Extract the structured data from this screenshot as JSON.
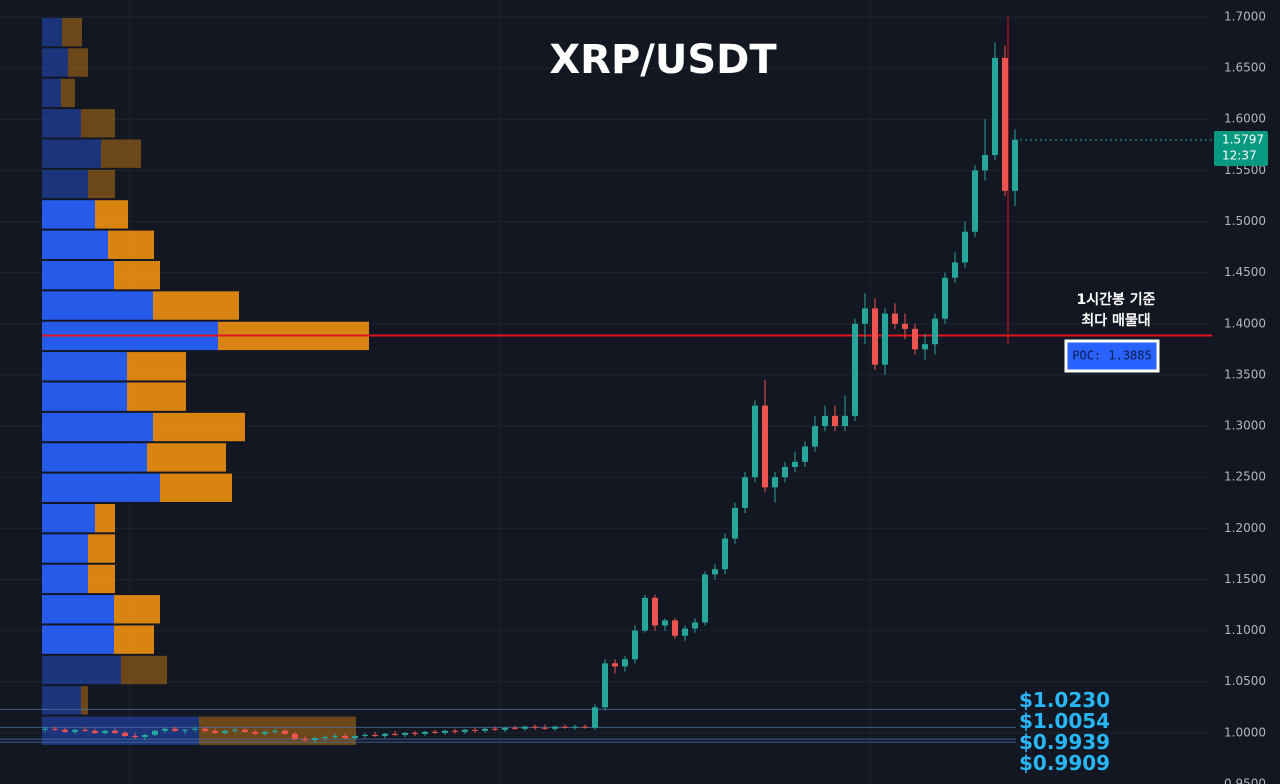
{
  "chart_data": {
    "type": "candlestick",
    "title": "XRP/USDT",
    "ylim": [
      0.95,
      1.7166
    ],
    "yticks": [
      {
        "value": 0.95,
        "label": "0.9500"
      },
      {
        "value": 1.0,
        "label": "1.0000"
      },
      {
        "value": 1.05,
        "label": "1.0500"
      },
      {
        "value": 1.1,
        "label": "1.1000"
      },
      {
        "value": 1.15,
        "label": "1.1500"
      },
      {
        "value": 1.2,
        "label": "1.2000"
      },
      {
        "value": 1.25,
        "label": "1.2500"
      },
      {
        "value": 1.3,
        "label": "1.3000"
      },
      {
        "value": 1.35,
        "label": "1.3500"
      },
      {
        "value": 1.4,
        "label": "1.4000"
      },
      {
        "value": 1.45,
        "label": "1.4500"
      },
      {
        "value": 1.5,
        "label": "1.5000"
      },
      {
        "value": 1.55,
        "label": "1.5500"
      },
      {
        "value": 1.6,
        "label": "1.6000"
      },
      {
        "value": 1.65,
        "label": "1.6500"
      },
      {
        "value": 1.7,
        "label": "1.7000"
      }
    ],
    "grid": true,
    "up_color": "#26a69a",
    "down_color": "#ef5350",
    "candles": [
      [
        1.003,
        1.006,
        1.001,
        1.004
      ],
      [
        1.004,
        1.006,
        1.002,
        1.003
      ],
      [
        1.003,
        1.005,
        1.0,
        1.001
      ],
      [
        1.001,
        1.004,
        0.999,
        1.003
      ],
      [
        1.003,
        1.006,
        1.001,
        1.002
      ],
      [
        1.002,
        1.004,
        0.999,
        1.0
      ],
      [
        1.0,
        1.003,
        0.998,
        1.002
      ],
      [
        1.002,
        1.004,
        0.999,
        1.0
      ],
      [
        1.0,
        1.002,
        0.996,
        0.997
      ],
      [
        0.997,
        1.0,
        0.994,
        0.996
      ],
      [
        0.996,
        0.999,
        0.993,
        0.998
      ],
      [
        0.998,
        1.003,
        0.997,
        1.002
      ],
      [
        1.002,
        1.005,
        1.0,
        1.004
      ],
      [
        1.004,
        1.006,
        1.001,
        1.002
      ],
      [
        1.002,
        1.004,
        0.999,
        1.003
      ],
      [
        1.003,
        1.006,
        1.001,
        1.004
      ],
      [
        1.004,
        1.006,
        1.001,
        1.002
      ],
      [
        1.002,
        1.004,
        0.999,
        1.0
      ],
      [
        1.0,
        1.003,
        0.998,
        1.002
      ],
      [
        1.002,
        1.005,
        1.0,
        1.003
      ],
      [
        1.003,
        1.005,
        1.0,
        1.001
      ],
      [
        1.001,
        1.003,
        0.998,
        0.999
      ],
      [
        0.999,
        1.002,
        0.997,
        1.001
      ],
      [
        1.001,
        1.004,
        0.999,
        1.002
      ],
      [
        1.002,
        1.004,
        0.998,
        0.999
      ],
      [
        0.999,
        1.001,
        0.993,
        0.994
      ],
      [
        0.994,
        0.997,
        0.991,
        0.993
      ],
      [
        0.993,
        0.996,
        0.99,
        0.995
      ],
      [
        0.995,
        0.998,
        0.993,
        0.996
      ],
      [
        0.996,
        0.999,
        0.994,
        0.997
      ],
      [
        0.997,
        0.999,
        0.994,
        0.995
      ],
      [
        0.995,
        0.998,
        0.993,
        0.997
      ],
      [
        0.997,
        1.0,
        0.995,
        0.998
      ],
      [
        0.998,
        1.001,
        0.996,
        0.997
      ],
      [
        0.997,
        1.0,
        0.995,
        0.999
      ],
      [
        0.999,
        1.002,
        0.997,
        0.998
      ],
      [
        0.998,
        1.001,
        0.996,
        1.0
      ],
      [
        1.0,
        1.002,
        0.997,
        0.999
      ],
      [
        0.999,
        1.002,
        0.997,
        1.001
      ],
      [
        1.001,
        1.003,
        0.999,
        1.0
      ],
      [
        1.0,
        1.003,
        0.998,
        1.002
      ],
      [
        1.002,
        1.004,
        0.999,
        1.001
      ],
      [
        1.001,
        1.004,
        0.999,
        1.003
      ],
      [
        1.003,
        1.005,
        1.0,
        1.002
      ],
      [
        1.002,
        1.005,
        1.0,
        1.004
      ],
      [
        1.004,
        1.006,
        1.002,
        1.003
      ],
      [
        1.003,
        1.006,
        1.001,
        1.005
      ],
      [
        1.005,
        1.007,
        1.003,
        1.004
      ],
      [
        1.004,
        1.007,
        1.002,
        1.006
      ],
      [
        1.006,
        1.008,
        1.003,
        1.005
      ],
      [
        1.005,
        1.008,
        1.003,
        1.004
      ],
      [
        1.004,
        1.007,
        1.002,
        1.006
      ],
      [
        1.006,
        1.008,
        1.004,
        1.005
      ],
      [
        1.005,
        1.008,
        1.003,
        1.006
      ],
      [
        1.006,
        1.008,
        1.004,
        1.005
      ],
      [
        1.005,
        1.028,
        1.003,
        1.025
      ],
      [
        1.025,
        1.072,
        1.022,
        1.068
      ],
      [
        1.068,
        1.072,
        1.058,
        1.065
      ],
      [
        1.065,
        1.075,
        1.06,
        1.072
      ],
      [
        1.072,
        1.105,
        1.068,
        1.1
      ],
      [
        1.1,
        1.135,
        1.098,
        1.132
      ],
      [
        1.132,
        1.135,
        1.1,
        1.105
      ],
      [
        1.105,
        1.112,
        1.1,
        1.11
      ],
      [
        1.11,
        1.112,
        1.092,
        1.095
      ],
      [
        1.095,
        1.105,
        1.09,
        1.102
      ],
      [
        1.102,
        1.112,
        1.098,
        1.108
      ],
      [
        1.108,
        1.158,
        1.105,
        1.155
      ],
      [
        1.155,
        1.165,
        1.15,
        1.16
      ],
      [
        1.16,
        1.195,
        1.155,
        1.19
      ],
      [
        1.19,
        1.225,
        1.185,
        1.22
      ],
      [
        1.22,
        1.255,
        1.215,
        1.25
      ],
      [
        1.25,
        1.325,
        1.245,
        1.32
      ],
      [
        1.32,
        1.345,
        1.235,
        1.24
      ],
      [
        1.24,
        1.255,
        1.225,
        1.25
      ],
      [
        1.25,
        1.265,
        1.245,
        1.26
      ],
      [
        1.26,
        1.275,
        1.255,
        1.265
      ],
      [
        1.265,
        1.285,
        1.26,
        1.28
      ],
      [
        1.28,
        1.31,
        1.275,
        1.3
      ],
      [
        1.3,
        1.32,
        1.295,
        1.31
      ],
      [
        1.31,
        1.32,
        1.295,
        1.3
      ],
      [
        1.3,
        1.33,
        1.295,
        1.31
      ],
      [
        1.31,
        1.405,
        1.305,
        1.4
      ],
      [
        1.4,
        1.43,
        1.38,
        1.415
      ],
      [
        1.415,
        1.425,
        1.355,
        1.36
      ],
      [
        1.36,
        1.415,
        1.35,
        1.41
      ],
      [
        1.41,
        1.42,
        1.395,
        1.4
      ],
      [
        1.4,
        1.41,
        1.385,
        1.395
      ],
      [
        1.395,
        1.4,
        1.37,
        1.375
      ],
      [
        1.375,
        1.39,
        1.365,
        1.38
      ],
      [
        1.38,
        1.41,
        1.37,
        1.405
      ],
      [
        1.405,
        1.45,
        1.4,
        1.445
      ],
      [
        1.445,
        1.47,
        1.44,
        1.46
      ],
      [
        1.46,
        1.5,
        1.455,
        1.49
      ],
      [
        1.49,
        1.555,
        1.485,
        1.55
      ],
      [
        1.55,
        1.6,
        1.54,
        1.565
      ],
      [
        1.565,
        1.675,
        1.56,
        1.66
      ],
      [
        1.66,
        1.672,
        1.525,
        1.53
      ],
      [
        1.53,
        1.59,
        1.515,
        1.58
      ]
    ],
    "profile": {
      "bins": [
        1.7,
        1.6703,
        1.6406,
        1.6109,
        1.5812,
        1.5515,
        1.5218,
        1.4921,
        1.4624,
        1.4327,
        1.403,
        1.3733,
        1.3436,
        1.3139,
        1.2842,
        1.2545,
        1.2248,
        1.1951,
        1.1654,
        1.1357,
        1.106,
        1.0763,
        1.0466,
        1.0169,
        0.9872
      ],
      "buy": [
        20,
        26,
        19,
        39,
        59,
        46,
        53,
        66,
        72,
        111,
        176,
        85,
        85,
        111,
        105,
        118,
        53,
        46,
        46,
        72,
        72,
        79,
        39,
        157
      ],
      "sell": [
        20,
        20,
        14,
        34,
        40,
        27,
        33,
        46,
        46,
        86,
        151,
        59,
        59,
        92,
        79,
        72,
        20,
        27,
        27,
        46,
        40,
        46,
        7,
        157
      ],
      "buy_color": "#2962ff",
      "sell_color": "#f0900f",
      "value_area_rows": [
        6,
        20
      ]
    },
    "poc": {
      "value": 1.3885,
      "label": "POC: 1.3885",
      "color": "#e0121b"
    },
    "annotation": [
      "1시간봉 기준",
      "최다 매물대"
    ],
    "price_lines": [
      {
        "value": 1.023,
        "label": "$1.0230"
      },
      {
        "value": 1.0054,
        "label": "$1.0054"
      },
      {
        "value": 0.9939,
        "label": "$0.9939"
      },
      {
        "value": 0.9909,
        "label": "$0.9909"
      }
    ],
    "last_price": {
      "value": 1.5797,
      "label": "1.5797",
      "countdown": "12:37"
    }
  }
}
